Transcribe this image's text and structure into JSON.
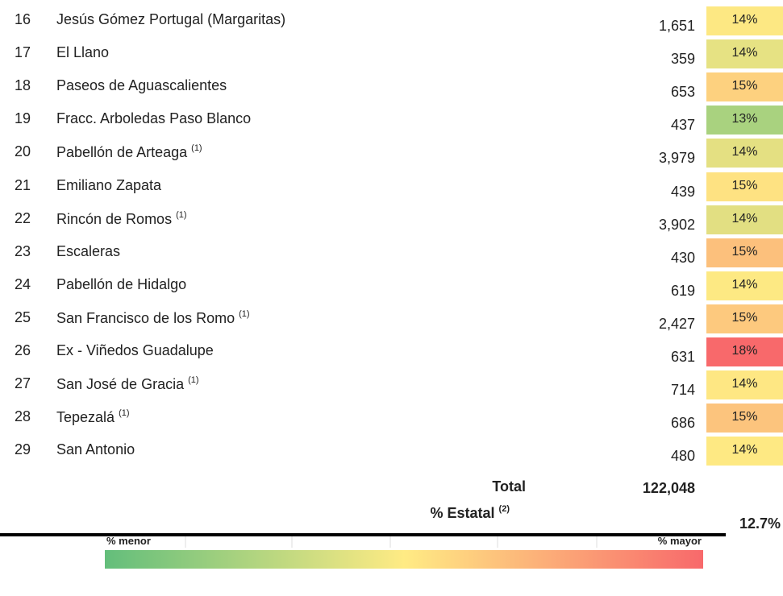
{
  "table": {
    "rows": [
      {
        "num": "16",
        "name": "Jesús Gómez Portugal (Margaritas)",
        "value": "1,651",
        "pct": "14%",
        "color": "#fde883"
      },
      {
        "num": "17",
        "name": "El Llano",
        "value": "359",
        "pct": "14%",
        "color": "#e6e283"
      },
      {
        "num": "18",
        "name": "Paseos de Aguascalientes",
        "value": "653",
        "pct": "15%",
        "color": "#fdd17f"
      },
      {
        "num": "19",
        "name": "Fracc. Arboledas Paso Blanco",
        "value": "437",
        "pct": "13%",
        "color": "#a9d27f"
      },
      {
        "num": "20",
        "name": "Pabellón de Arteaga",
        "note": "(1)",
        "value": "3,979",
        "pct": "14%",
        "color": "#e4e082"
      },
      {
        "num": "21",
        "name": "Emiliano Zapata",
        "value": "439",
        "pct": "15%",
        "color": "#fee282"
      },
      {
        "num": "22",
        "name": "Rincón de Romos",
        "note": "(1)",
        "value": "3,902",
        "pct": "14%",
        "color": "#e2df82"
      },
      {
        "num": "23",
        "name": "Escaleras",
        "value": "430",
        "pct": "15%",
        "color": "#fcc07c"
      },
      {
        "num": "24",
        "name": "Pabellón de Hidalgo",
        "value": "619",
        "pct": "14%",
        "color": "#fde983"
      },
      {
        "num": "25",
        "name": "San Francisco de los Romo",
        "note": "(1)",
        "value": "2,427",
        "pct": "15%",
        "color": "#fdc97e"
      },
      {
        "num": "26",
        "name": "Ex - Viñedos Guadalupe",
        "value": "631",
        "pct": "18%",
        "color": "#f8696b"
      },
      {
        "num": "27",
        "name": "San José de Gracia",
        "note": "(1)",
        "value": "714",
        "pct": "14%",
        "color": "#fee783"
      },
      {
        "num": "28",
        "name": "Tepezalá",
        "note": "(1)",
        "value": "686",
        "pct": "15%",
        "color": "#fcc47d"
      },
      {
        "num": "29",
        "name": "San Antonio",
        "value": "480",
        "pct": "14%",
        "color": "#fee983"
      }
    ],
    "total": {
      "label": "Total",
      "value": "122,048"
    },
    "estatal": {
      "label": "% Estatal",
      "note": "(2)",
      "value": "12.7%"
    }
  },
  "legend": {
    "low": "% menor",
    "high": "% mayor"
  }
}
